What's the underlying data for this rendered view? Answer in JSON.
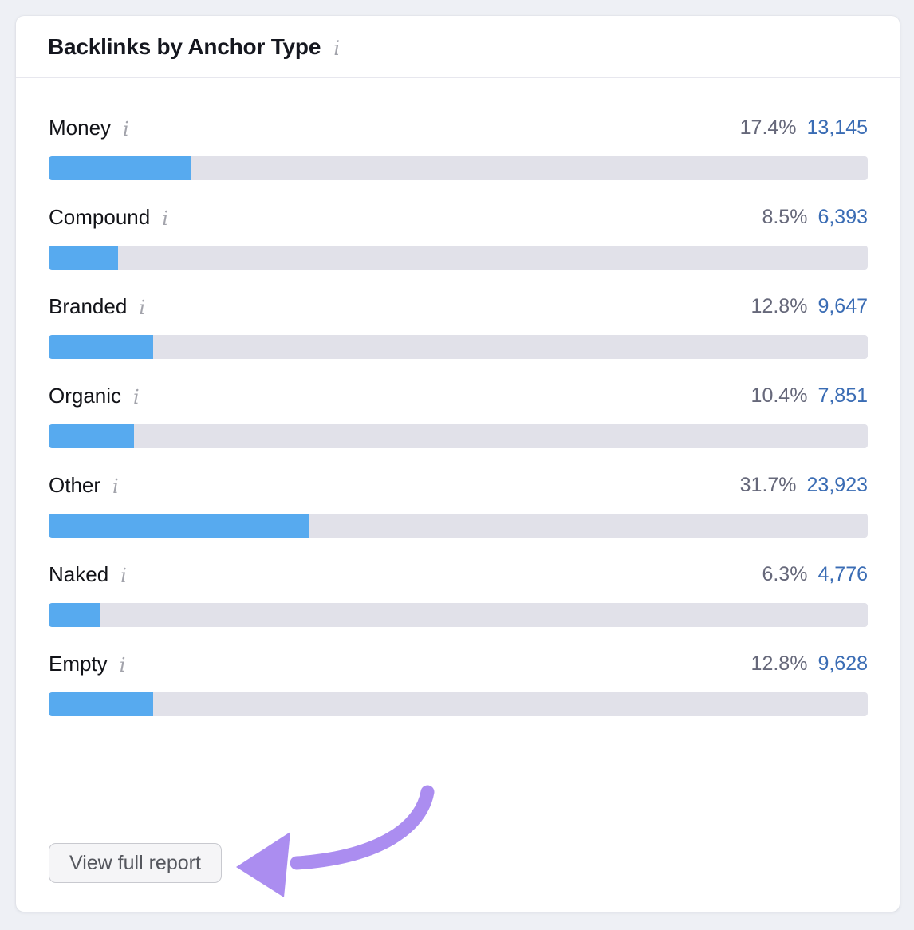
{
  "theme": {
    "bar_fill": "#57aaef",
    "bar_track": "#e1e1e9",
    "count_color": "#3a6cb4",
    "percent_color": "#66687a",
    "arrow_color": "#ab8df0"
  },
  "icons": {
    "info_glyph": "i"
  },
  "card": {
    "title": "Backlinks by Anchor Type"
  },
  "rows": [
    {
      "label": "Money",
      "percent": "17.4%",
      "count": "13,145",
      "percent_value": 17.4
    },
    {
      "label": "Compound",
      "percent": "8.5%",
      "count": "6,393",
      "percent_value": 8.5
    },
    {
      "label": "Branded",
      "percent": "12.8%",
      "count": "9,647",
      "percent_value": 12.8
    },
    {
      "label": "Organic",
      "percent": "10.4%",
      "count": "7,851",
      "percent_value": 10.4
    },
    {
      "label": "Other",
      "percent": "31.7%",
      "count": "23,923",
      "percent_value": 31.7
    },
    {
      "label": "Naked",
      "percent": "6.3%",
      "count": "4,776",
      "percent_value": 6.3
    },
    {
      "label": "Empty",
      "percent": "12.8%",
      "count": "9,628",
      "percent_value": 12.8
    }
  ],
  "footer": {
    "button_label": "View full report"
  },
  "chart_data": {
    "type": "bar",
    "orientation": "horizontal",
    "title": "Backlinks by Anchor Type",
    "categories": [
      "Money",
      "Compound",
      "Branded",
      "Organic",
      "Other",
      "Naked",
      "Empty"
    ],
    "series": [
      {
        "name": "Share %",
        "values": [
          17.4,
          8.5,
          12.8,
          10.4,
          31.7,
          6.3,
          12.8
        ]
      },
      {
        "name": "Backlinks",
        "values": [
          13145,
          6393,
          9647,
          7851,
          23923,
          4776,
          9628
        ]
      }
    ],
    "xlim": [
      0,
      100
    ],
    "grid": false,
    "legend": false
  }
}
